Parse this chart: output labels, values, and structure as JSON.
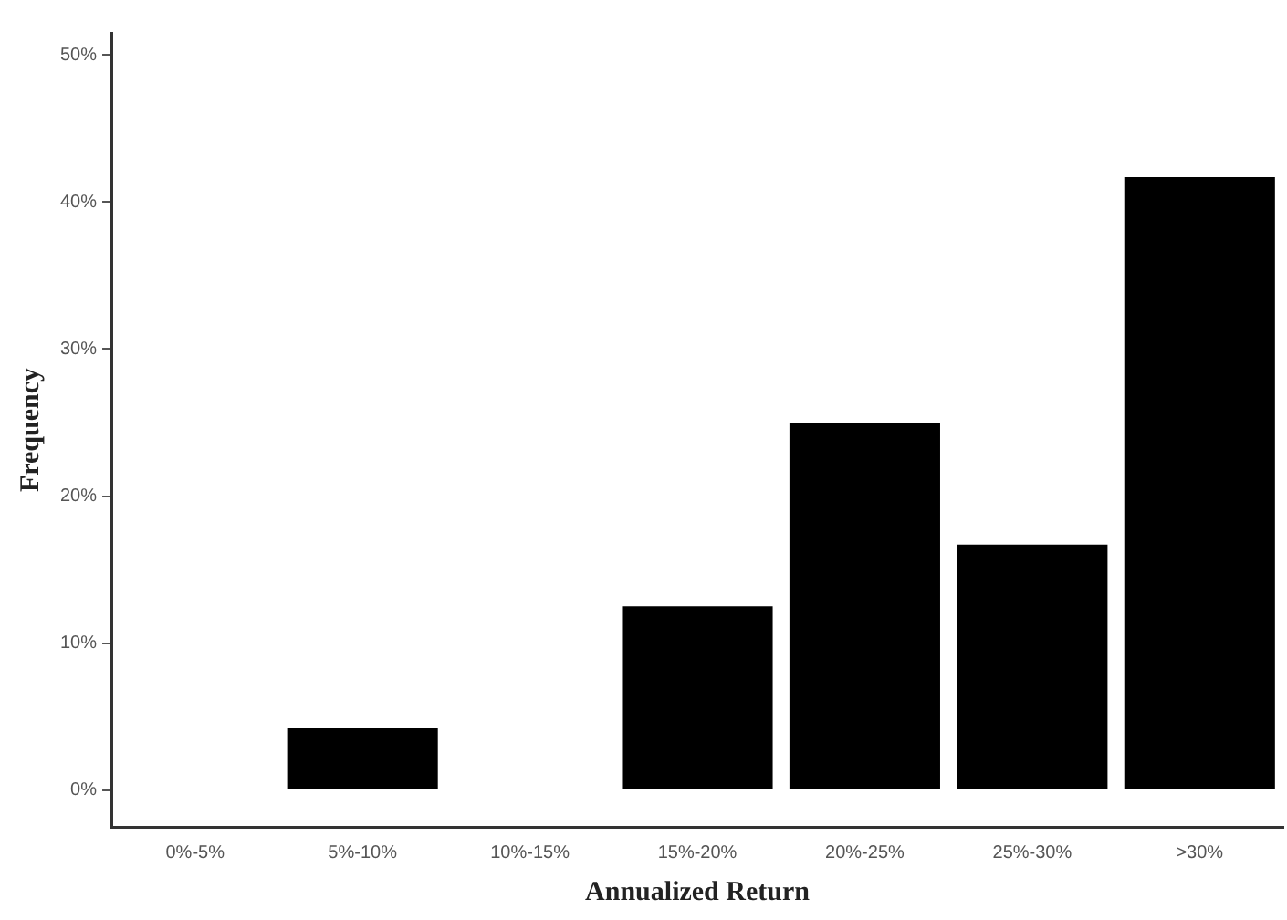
{
  "chart_data": {
    "type": "bar",
    "xlabel": "Annualized Return",
    "ylabel": "Frequency",
    "categories": [
      "0%-5%",
      "5%-10%",
      "10%-15%",
      "15%-20%",
      "20%-25%",
      "25%-30%",
      ">30%"
    ],
    "values": [
      0,
      4.2,
      0,
      12.5,
      25,
      16.7,
      41.7
    ],
    "color": "#000000",
    "ylim": [
      -2.5,
      51.5
    ],
    "yticks": [
      {
        "value": 0,
        "label": "0%"
      },
      {
        "value": 10,
        "label": "10%"
      },
      {
        "value": 20,
        "label": "20%"
      },
      {
        "value": 30,
        "label": "30%"
      },
      {
        "value": 40,
        "label": "40%"
      },
      {
        "value": 50,
        "label": "50%"
      }
    ],
    "grid": false,
    "legend": false
  }
}
